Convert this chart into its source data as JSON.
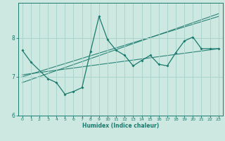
{
  "title": "",
  "xlabel": "Humidex (Indice chaleur)",
  "bg_color": "#cce8e0",
  "line_color": "#1a7a6e",
  "grid_color": "#aad4cc",
  "xlim": [
    -0.5,
    23.5
  ],
  "ylim": [
    6.0,
    8.9
  ],
  "yticks": [
    6,
    7,
    8
  ],
  "xticks": [
    0,
    1,
    2,
    3,
    4,
    5,
    6,
    7,
    8,
    9,
    10,
    11,
    12,
    13,
    14,
    15,
    16,
    17,
    18,
    19,
    20,
    21,
    22,
    23
  ],
  "series1_x": [
    0,
    1,
    3,
    4,
    5,
    6,
    7,
    8,
    9,
    10,
    11,
    12,
    13,
    14,
    15,
    16,
    17,
    18,
    19,
    20,
    21,
    22,
    23
  ],
  "series1_y": [
    7.68,
    7.38,
    6.95,
    6.85,
    6.55,
    6.62,
    6.72,
    7.65,
    8.55,
    7.95,
    7.68,
    7.55,
    7.28,
    7.42,
    7.55,
    7.32,
    7.28,
    7.62,
    7.92,
    8.02,
    7.72,
    7.72,
    7.72
  ],
  "trend1_x": [
    0,
    23
  ],
  "trend1_y": [
    7.05,
    7.72
  ],
  "trend2_x": [
    0,
    23
  ],
  "trend2_y": [
    6.85,
    8.62
  ],
  "trend3_x": [
    0,
    23
  ],
  "trend3_y": [
    7.0,
    8.55
  ]
}
